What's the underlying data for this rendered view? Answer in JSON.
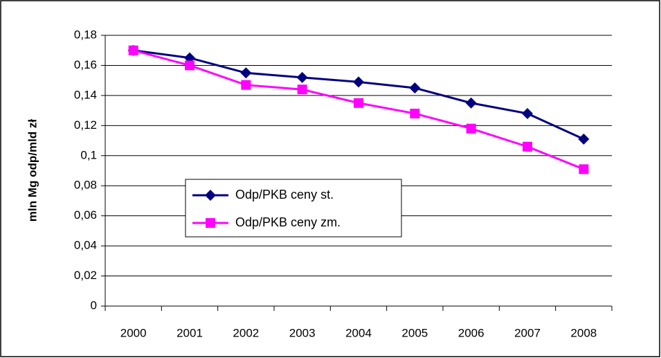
{
  "chart_data": {
    "type": "line",
    "y_label": "mln Mg odp/mld zł",
    "categories": [
      "2000",
      "2001",
      "2002",
      "2003",
      "2004",
      "2005",
      "2006",
      "2007",
      "2008"
    ],
    "series": [
      {
        "name": "Odp/PKB ceny st.",
        "color": "#000080",
        "marker": "diamond",
        "values": [
          0.17,
          0.165,
          0.155,
          0.152,
          0.149,
          0.145,
          0.135,
          0.128,
          0.111
        ]
      },
      {
        "name": "Odp/PKB ceny zm.",
        "color": "#ff00ff",
        "marker": "square",
        "values": [
          0.17,
          0.16,
          0.147,
          0.144,
          0.135,
          0.128,
          0.118,
          0.106,
          0.091
        ]
      }
    ],
    "ylim": [
      0,
      0.18
    ],
    "yticks": [
      0,
      {
        "value": 0.02,
        "label": "0,02"
      },
      {
        "value": 0.04,
        "label": "0,04"
      },
      {
        "value": 0.06,
        "label": "0,06"
      },
      {
        "value": 0.08,
        "label": "0,08"
      },
      {
        "value": 0.1,
        "label": "0,1"
      },
      {
        "value": 0.12,
        "label": "0,12"
      },
      {
        "value": 0.14,
        "label": "0,14"
      },
      {
        "value": 0.16,
        "label": "0,16"
      },
      {
        "value": 0.18,
        "label": "0,18"
      }
    ],
    "grid": true
  }
}
